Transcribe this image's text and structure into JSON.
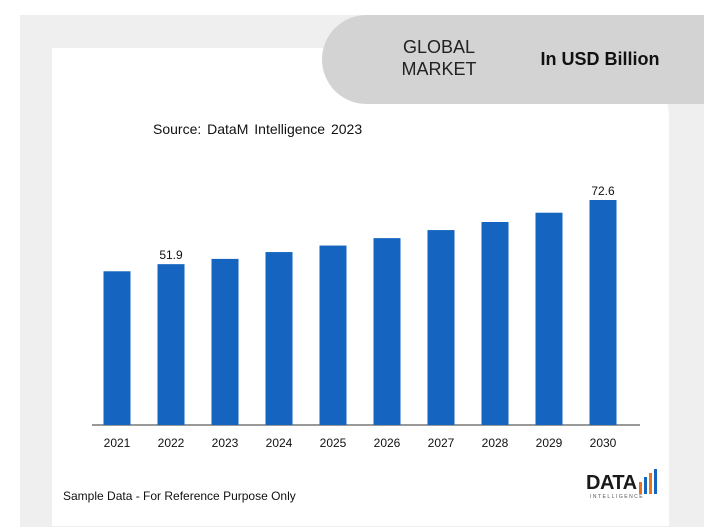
{
  "header": {
    "title_line1": "GLOBAL",
    "title_line2": "MARKET",
    "unit": "In USD Billion"
  },
  "source": "Source: DataM Intelligence 2023",
  "footnote": "Sample Data - For Reference Purpose Only",
  "logo": {
    "text": "DATA",
    "sub": "INTELLIGENCE"
  },
  "colors": {
    "bar": "#1565c0",
    "axis": "#333333",
    "header_bg": "#d3d3d3",
    "frame_bg": "#efefef"
  },
  "chart_data": {
    "type": "bar",
    "categories": [
      "2021",
      "2022",
      "2023",
      "2024",
      "2025",
      "2026",
      "2027",
      "2028",
      "2029",
      "2030"
    ],
    "values": [
      49.6,
      51.9,
      53.6,
      55.8,
      57.9,
      60.3,
      62.9,
      65.5,
      68.5,
      72.6
    ],
    "data_labels": {
      "1": "51.9",
      "9": "72.6"
    },
    "title": "",
    "xlabel": "",
    "ylabel": "",
    "grid": false,
    "legend": "none"
  }
}
